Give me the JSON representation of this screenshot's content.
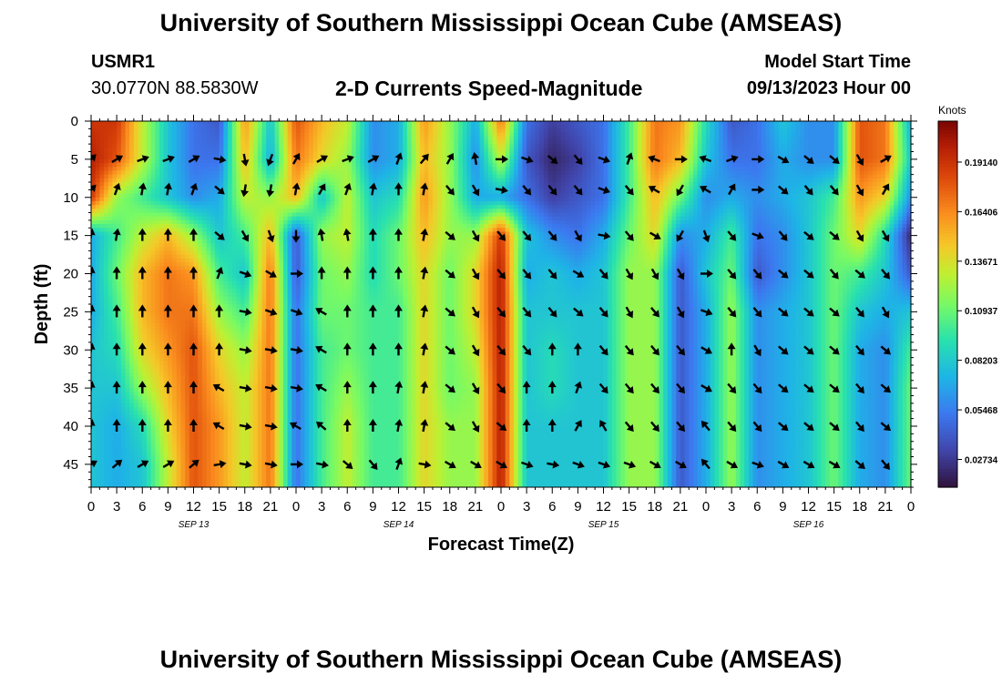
{
  "header": {
    "title": "University of Southern Mississippi Ocean Cube (AMSEAS)",
    "station_name": "USMR1",
    "station_coords": "30.0770N  88.5830W",
    "subtitle": "2-D Currents Speed-Magnitude",
    "model_start_label": "Model Start Time",
    "model_start_value": "09/13/2023 Hour 00"
  },
  "footer": {
    "title_repeat": "University of Southern Mississippi Ocean Cube (AMSEAS)"
  },
  "chart_data": {
    "type": "heatmap",
    "title": "2-D Currents Speed-Magnitude",
    "xlabel": "Forecast Time(Z)",
    "ylabel": "Depth (ft)",
    "x_tick_labels": [
      "0",
      "3",
      "6",
      "9",
      "12",
      "15",
      "18",
      "21",
      "0",
      "3",
      "6",
      "9",
      "12",
      "15",
      "18",
      "21",
      "0",
      "3",
      "6",
      "9",
      "12",
      "15",
      "18",
      "21",
      "0",
      "3",
      "6",
      "9",
      "12",
      "15",
      "18",
      "21",
      "0"
    ],
    "x_hours_range": [
      0,
      96
    ],
    "date_labels": [
      {
        "label": "SEP 13",
        "hour": 12
      },
      {
        "label": "SEP 14",
        "hour": 36
      },
      {
        "label": "SEP 15",
        "hour": 60
      },
      {
        "label": "SEP 16",
        "hour": 84
      }
    ],
    "y_ticks": [
      0,
      5,
      10,
      15,
      20,
      25,
      30,
      35,
      40,
      45
    ],
    "ylim": [
      0,
      48
    ],
    "y_inverted": true,
    "colorbar": {
      "label": "Knots",
      "vmin": 0.012,
      "vmax": 0.214,
      "tick_values": [
        0.1914,
        0.16406,
        0.13671,
        0.10937,
        0.08203,
        0.05468,
        0.02734
      ],
      "tick_labels": [
        "0.19140",
        "0.16406",
        "0.13671",
        "0.10937",
        "0.08203",
        "0.05468",
        "0.02734"
      ]
    },
    "grid_hours": [
      0,
      3,
      6,
      9,
      12,
      15,
      18,
      21,
      24,
      27,
      30,
      33,
      36,
      39,
      42,
      45,
      48,
      51,
      54,
      57,
      60,
      63,
      66,
      69,
      72,
      75,
      78,
      81,
      84,
      87,
      90,
      93,
      96
    ],
    "grid_depths": [
      0,
      5,
      10,
      15,
      20,
      25,
      30,
      35,
      40,
      45,
      48
    ],
    "speed_grid": [
      [
        0.19,
        0.19,
        0.13,
        0.08,
        0.05,
        0.04,
        0.16,
        0.08,
        0.18,
        0.15,
        0.13,
        0.06,
        0.07,
        0.16,
        0.12,
        0.07,
        0.17,
        0.05,
        0.03,
        0.04,
        0.05,
        0.1,
        0.17,
        0.16,
        0.09,
        0.04,
        0.05,
        0.08,
        0.06,
        0.06,
        0.18,
        0.17,
        0.07
      ],
      [
        0.2,
        0.18,
        0.13,
        0.08,
        0.05,
        0.05,
        0.15,
        0.07,
        0.17,
        0.14,
        0.12,
        0.06,
        0.07,
        0.15,
        0.12,
        0.06,
        0.13,
        0.04,
        0.02,
        0.03,
        0.05,
        0.1,
        0.17,
        0.15,
        0.08,
        0.05,
        0.05,
        0.07,
        0.06,
        0.06,
        0.18,
        0.17,
        0.08
      ],
      [
        0.19,
        0.12,
        0.1,
        0.08,
        0.06,
        0.07,
        0.13,
        0.12,
        0.15,
        0.08,
        0.13,
        0.08,
        0.09,
        0.16,
        0.12,
        0.07,
        0.07,
        0.05,
        0.03,
        0.04,
        0.05,
        0.1,
        0.15,
        0.11,
        0.06,
        0.07,
        0.06,
        0.07,
        0.08,
        0.1,
        0.16,
        0.14,
        0.06
      ],
      [
        0.07,
        0.1,
        0.13,
        0.15,
        0.12,
        0.08,
        0.1,
        0.15,
        0.04,
        0.12,
        0.13,
        0.09,
        0.11,
        0.15,
        0.12,
        0.12,
        0.19,
        0.08,
        0.06,
        0.05,
        0.07,
        0.11,
        0.14,
        0.06,
        0.07,
        0.1,
        0.05,
        0.06,
        0.08,
        0.11,
        0.14,
        0.09,
        0.02
      ],
      [
        0.07,
        0.11,
        0.15,
        0.17,
        0.16,
        0.1,
        0.08,
        0.17,
        0.04,
        0.11,
        0.12,
        0.09,
        0.11,
        0.14,
        0.11,
        0.14,
        0.2,
        0.07,
        0.08,
        0.07,
        0.08,
        0.12,
        0.12,
        0.04,
        0.08,
        0.11,
        0.04,
        0.06,
        0.08,
        0.11,
        0.1,
        0.08,
        0.04
      ],
      [
        0.07,
        0.1,
        0.15,
        0.17,
        0.17,
        0.12,
        0.1,
        0.17,
        0.05,
        0.11,
        0.11,
        0.1,
        0.1,
        0.14,
        0.11,
        0.14,
        0.2,
        0.08,
        0.08,
        0.08,
        0.08,
        0.12,
        0.12,
        0.04,
        0.07,
        0.12,
        0.06,
        0.07,
        0.08,
        0.11,
        0.08,
        0.07,
        0.08
      ],
      [
        0.08,
        0.09,
        0.14,
        0.16,
        0.18,
        0.14,
        0.12,
        0.17,
        0.05,
        0.1,
        0.11,
        0.1,
        0.1,
        0.14,
        0.11,
        0.13,
        0.2,
        0.08,
        0.09,
        0.08,
        0.08,
        0.12,
        0.12,
        0.04,
        0.07,
        0.12,
        0.06,
        0.07,
        0.08,
        0.11,
        0.07,
        0.06,
        0.1
      ],
      [
        0.08,
        0.08,
        0.12,
        0.15,
        0.18,
        0.15,
        0.13,
        0.17,
        0.05,
        0.1,
        0.12,
        0.1,
        0.1,
        0.14,
        0.11,
        0.12,
        0.2,
        0.08,
        0.09,
        0.08,
        0.08,
        0.12,
        0.12,
        0.04,
        0.07,
        0.12,
        0.06,
        0.07,
        0.08,
        0.11,
        0.07,
        0.06,
        0.11
      ],
      [
        0.08,
        0.07,
        0.09,
        0.14,
        0.18,
        0.16,
        0.13,
        0.17,
        0.05,
        0.1,
        0.13,
        0.1,
        0.1,
        0.14,
        0.12,
        0.12,
        0.2,
        0.08,
        0.08,
        0.08,
        0.08,
        0.12,
        0.12,
        0.04,
        0.07,
        0.12,
        0.06,
        0.07,
        0.08,
        0.11,
        0.07,
        0.06,
        0.11
      ],
      [
        0.08,
        0.07,
        0.08,
        0.13,
        0.18,
        0.16,
        0.13,
        0.17,
        0.05,
        0.1,
        0.13,
        0.1,
        0.1,
        0.14,
        0.12,
        0.12,
        0.2,
        0.08,
        0.08,
        0.08,
        0.08,
        0.12,
        0.12,
        0.04,
        0.07,
        0.12,
        0.06,
        0.07,
        0.08,
        0.11,
        0.07,
        0.06,
        0.11
      ],
      [
        0.08,
        0.07,
        0.08,
        0.13,
        0.18,
        0.16,
        0.13,
        0.17,
        0.05,
        0.1,
        0.13,
        0.1,
        0.1,
        0.14,
        0.12,
        0.12,
        0.2,
        0.08,
        0.08,
        0.08,
        0.08,
        0.12,
        0.12,
        0.04,
        0.07,
        0.12,
        0.06,
        0.07,
        0.08,
        0.11,
        0.07,
        0.06,
        0.11
      ]
    ],
    "arrow_hours": [
      0,
      3,
      6,
      9,
      12,
      15,
      18,
      21,
      24,
      27,
      30,
      33,
      36,
      39,
      42,
      45,
      48,
      51,
      54,
      57,
      60,
      63,
      66,
      69,
      72,
      75,
      78,
      81,
      84,
      87,
      90,
      93
    ],
    "arrow_depths": [
      5,
      9,
      15,
      20,
      25,
      30,
      35,
      40,
      45
    ],
    "arrow_directions_deg": [
      [
        45,
        60,
        70,
        70,
        60,
        100,
        170,
        200,
        30,
        60,
        70,
        60,
        20,
        40,
        30,
        350,
        90,
        110,
        130,
        140,
        110,
        20,
        290,
        90,
        290,
        70,
        90,
        120,
        130,
        130,
        150,
        60
      ],
      [
        45,
        20,
        10,
        10,
        20,
        130,
        190,
        190,
        10,
        30,
        20,
        10,
        0,
        10,
        140,
        150,
        100,
        140,
        140,
        140,
        110,
        140,
        300,
        210,
        300,
        30,
        90,
        130,
        140,
        140,
        150,
        30
      ],
      [
        10,
        10,
        0,
        0,
        0,
        130,
        150,
        160,
        180,
        350,
        350,
        0,
        0,
        10,
        130,
        150,
        140,
        140,
        140,
        150,
        100,
        140,
        120,
        210,
        160,
        140,
        110,
        140,
        130,
        130,
        150,
        150
      ],
      [
        10,
        0,
        0,
        0,
        0,
        20,
        110,
        120,
        90,
        0,
        0,
        0,
        0,
        10,
        130,
        150,
        140,
        140,
        140,
        120,
        140,
        150,
        150,
        150,
        90,
        140,
        140,
        130,
        130,
        140,
        130,
        140
      ],
      [
        10,
        0,
        0,
        0,
        0,
        0,
        100,
        110,
        110,
        300,
        0,
        0,
        0,
        10,
        130,
        150,
        140,
        140,
        140,
        130,
        140,
        150,
        140,
        150,
        110,
        140,
        140,
        130,
        130,
        130,
        140,
        150
      ],
      [
        10,
        0,
        0,
        0,
        0,
        0,
        100,
        100,
        100,
        300,
        0,
        0,
        0,
        10,
        130,
        150,
        140,
        140,
        0,
        0,
        140,
        140,
        140,
        140,
        120,
        0,
        150,
        130,
        130,
        130,
        140,
        130
      ],
      [
        10,
        0,
        0,
        0,
        0,
        300,
        100,
        100,
        100,
        300,
        0,
        0,
        10,
        10,
        130,
        150,
        140,
        0,
        0,
        20,
        140,
        140,
        140,
        140,
        120,
        140,
        140,
        130,
        130,
        130,
        140,
        130
      ],
      [
        10,
        0,
        0,
        0,
        0,
        300,
        100,
        100,
        300,
        310,
        0,
        0,
        10,
        10,
        130,
        150,
        130,
        0,
        0,
        30,
        330,
        140,
        140,
        140,
        320,
        140,
        140,
        130,
        130,
        130,
        140,
        130
      ],
      [
        60,
        50,
        60,
        60,
        50,
        80,
        100,
        100,
        90,
        100,
        130,
        140,
        20,
        100,
        120,
        120,
        120,
        110,
        100,
        110,
        110,
        110,
        120,
        120,
        320,
        120,
        110,
        120,
        120,
        120,
        130,
        140
      ]
    ]
  }
}
